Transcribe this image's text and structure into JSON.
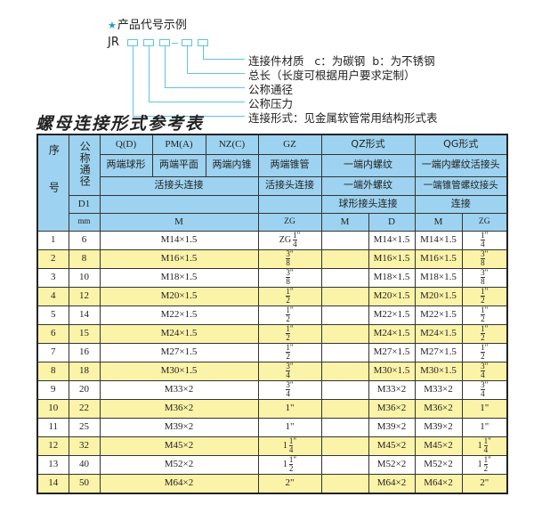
{
  "diagram": {
    "title": "产品代号示例",
    "star_icon": "star-icon",
    "prefix": "JR",
    "dash": "-",
    "labels": [
      "连接件材质   c：为碳钢  b：为不锈钢",
      "总长（长度可根据用户要求定制）",
      "公称通径",
      "公称压力",
      "连接形式：见金属软管常用结构形式表"
    ]
  },
  "table_title": "螺母连接形式参考表",
  "header": {
    "seq": "序号",
    "dn": "公称通径",
    "row1": [
      "Q(D)",
      "PM(A)",
      "NZ(C)",
      "GZ",
      "QZ形式",
      "QG形式"
    ],
    "row2": [
      "两端球形",
      "两端平面",
      "两端内锥",
      "两端锥管",
      "一端内螺纹",
      "一端内螺纹活接头"
    ],
    "row3": [
      "活接头连接",
      "活接头连接",
      "一端外螺纹",
      "一端锥管螺纹接头"
    ],
    "row4": [
      "D1",
      "",
      "",
      "球形接头连接",
      "连接"
    ],
    "row5": [
      "mm",
      "M",
      "ZG",
      "M",
      "D",
      "M",
      "ZG"
    ]
  },
  "colors": {
    "header_bg": "#9dd3f0",
    "stripe": "#fbf3a8",
    "accent": "#5fc3e4"
  },
  "rows": [
    {
      "seq": "1",
      "dn": "6",
      "m": "M14×1.5",
      "zg": {
        "whole": "ZG",
        "num": "1",
        "den": "4",
        "suf": "\""
      },
      "qz_m": "",
      "qz_d": "M14×1.5",
      "qg_m": "M14×1.5",
      "qg_zg": {
        "whole": "",
        "num": "1",
        "den": "4",
        "suf": "\""
      }
    },
    {
      "seq": "2",
      "dn": "8",
      "m": "M16×1.5",
      "zg": {
        "whole": "",
        "num": "3",
        "den": "8",
        "suf": "\""
      },
      "qz_m": "",
      "qz_d": "M16×1.5",
      "qg_m": "M16×1.5",
      "qg_zg": {
        "whole": "",
        "num": "3",
        "den": "8",
        "suf": "\""
      }
    },
    {
      "seq": "3",
      "dn": "10",
      "m": "M18×1.5",
      "zg": {
        "whole": "",
        "num": "3",
        "den": "8",
        "suf": "\""
      },
      "qz_m": "",
      "qz_d": "M18×1.5",
      "qg_m": "M18×1.5",
      "qg_zg": {
        "whole": "",
        "num": "3",
        "den": "8",
        "suf": "\""
      }
    },
    {
      "seq": "4",
      "dn": "12",
      "m": "M20×1.5",
      "zg": {
        "whole": "",
        "num": "1",
        "den": "2",
        "suf": "\""
      },
      "qz_m": "",
      "qz_d": "M20×1.5",
      "qg_m": "M20×1.5",
      "qg_zg": {
        "whole": "",
        "num": "1",
        "den": "2",
        "suf": "\""
      }
    },
    {
      "seq": "5",
      "dn": "14",
      "m": "M22×1.5",
      "zg": {
        "whole": "",
        "num": "1",
        "den": "2",
        "suf": "\""
      },
      "qz_m": "",
      "qz_d": "M22×1.5",
      "qg_m": "M22×1.5",
      "qg_zg": {
        "whole": "",
        "num": "1",
        "den": "2",
        "suf": "\""
      }
    },
    {
      "seq": "6",
      "dn": "15",
      "m": "M24×1.5",
      "zg": {
        "whole": "",
        "num": "1",
        "den": "2",
        "suf": "\""
      },
      "qz_m": "",
      "qz_d": "M24×1.5",
      "qg_m": "M24×1.5",
      "qg_zg": {
        "whole": "",
        "num": "1",
        "den": "2",
        "suf": "\""
      }
    },
    {
      "seq": "7",
      "dn": "16",
      "m": "M27×1.5",
      "zg": {
        "whole": "",
        "num": "1",
        "den": "2",
        "suf": "\""
      },
      "qz_m": "",
      "qz_d": "M27×1.5",
      "qg_m": "M27×1.5",
      "qg_zg": {
        "whole": "",
        "num": "1",
        "den": "2",
        "suf": "\""
      }
    },
    {
      "seq": "8",
      "dn": "18",
      "m": "M30×1.5",
      "zg": {
        "whole": "",
        "num": "3",
        "den": "4",
        "suf": "\""
      },
      "qz_m": "",
      "qz_d": "M30×1.5",
      "qg_m": "M30×1.5",
      "qg_zg": {
        "whole": "",
        "num": "3",
        "den": "4",
        "suf": "\""
      }
    },
    {
      "seq": "9",
      "dn": "20",
      "m": "M33×2",
      "zg": {
        "whole": "",
        "num": "3",
        "den": "4",
        "suf": "\""
      },
      "qz_m": "",
      "qz_d": "M33×2",
      "qg_m": "M33×2",
      "qg_zg": {
        "whole": "",
        "num": "3",
        "den": "4",
        "suf": "\""
      }
    },
    {
      "seq": "10",
      "dn": "22",
      "m": "M36×2",
      "zg": {
        "text": "1\""
      },
      "qz_m": "",
      "qz_d": "M36×2",
      "qg_m": "M36×2",
      "qg_zg": {
        "text": "1\""
      }
    },
    {
      "seq": "11",
      "dn": "25",
      "m": "M39×2",
      "zg": {
        "text": "1\""
      },
      "qz_m": "",
      "qz_d": "M39×2",
      "qg_m": "M39×2",
      "qg_zg": {
        "text": "1\""
      }
    },
    {
      "seq": "12",
      "dn": "32",
      "m": "M45×2",
      "zg": {
        "whole": "1",
        "num": "1",
        "den": "4",
        "suf": "\""
      },
      "qz_m": "",
      "qz_d": "M45×2",
      "qg_m": "M45×2",
      "qg_zg": {
        "whole": "1",
        "num": "1",
        "den": "4",
        "suf": "\""
      }
    },
    {
      "seq": "13",
      "dn": "40",
      "m": "M52×2",
      "zg": {
        "whole": "1",
        "num": "1",
        "den": "2",
        "suf": "\""
      },
      "qz_m": "",
      "qz_d": "M52×2",
      "qg_m": "M52×2",
      "qg_zg": {
        "whole": "1",
        "num": "1",
        "den": "2",
        "suf": "\""
      }
    },
    {
      "seq": "14",
      "dn": "50",
      "m": "M64×2",
      "zg": {
        "text": "2\""
      },
      "qz_m": "",
      "qz_d": "M64×2",
      "qg_m": "M64×2",
      "qg_zg": {
        "text": "2\""
      }
    }
  ]
}
